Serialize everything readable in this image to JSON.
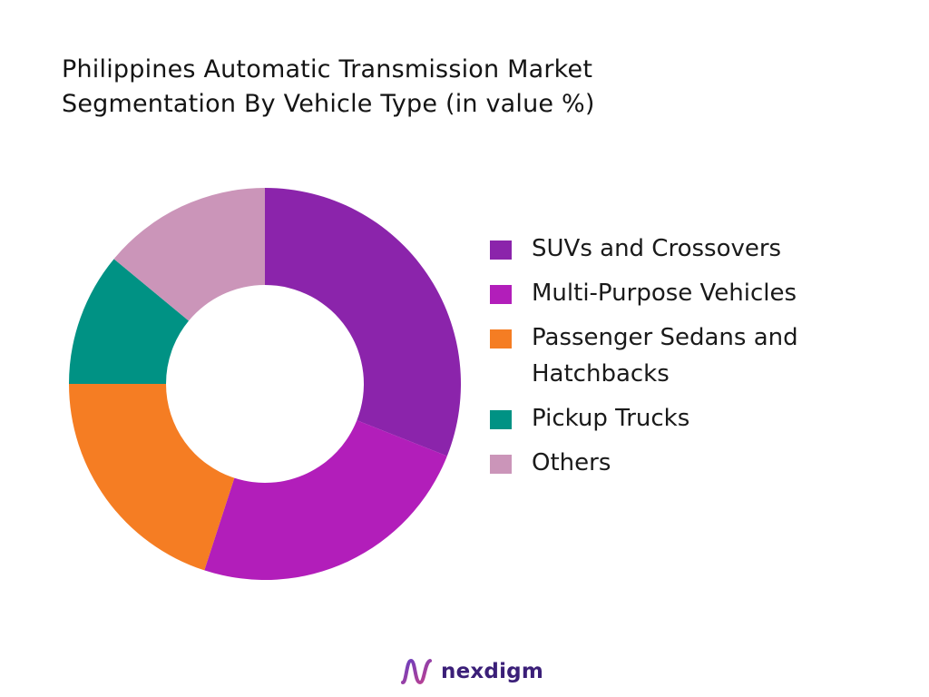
{
  "chart_data": {
    "type": "pie",
    "variant": "donut",
    "title_lines": [
      "Philippines Automatic Transmission Market",
      "Segmentation By Vehicle Type (in value %)"
    ],
    "categories": [
      "SUVs and Crossovers",
      "Multi-Purpose Vehicles",
      "Passenger Sedans and Hatchbacks",
      "Pickup Trucks",
      "Others"
    ],
    "values": [
      31,
      24,
      20,
      11,
      14
    ],
    "colors": [
      "#8b24ab",
      "#b21eba",
      "#f57d23",
      "#009284",
      "#cb95b9"
    ],
    "legend": {
      "placement": "right",
      "items": [
        {
          "label_lines": [
            "SUVs and Crossovers"
          ],
          "color": "#8b24ab"
        },
        {
          "label_lines": [
            "Multi-Purpose Vehicles"
          ],
          "color": "#b21eba"
        },
        {
          "label_lines": [
            "Passenger Sedans and",
            "Hatchbacks"
          ],
          "color": "#f57d23"
        },
        {
          "label_lines": [
            "Pickup Trucks"
          ],
          "color": "#009284"
        },
        {
          "label_lines": [
            "Others"
          ],
          "color": "#cb95b9"
        }
      ]
    }
  },
  "brand": {
    "name": "nexdigm",
    "logo_icon": "nexdigm-logo-icon"
  }
}
